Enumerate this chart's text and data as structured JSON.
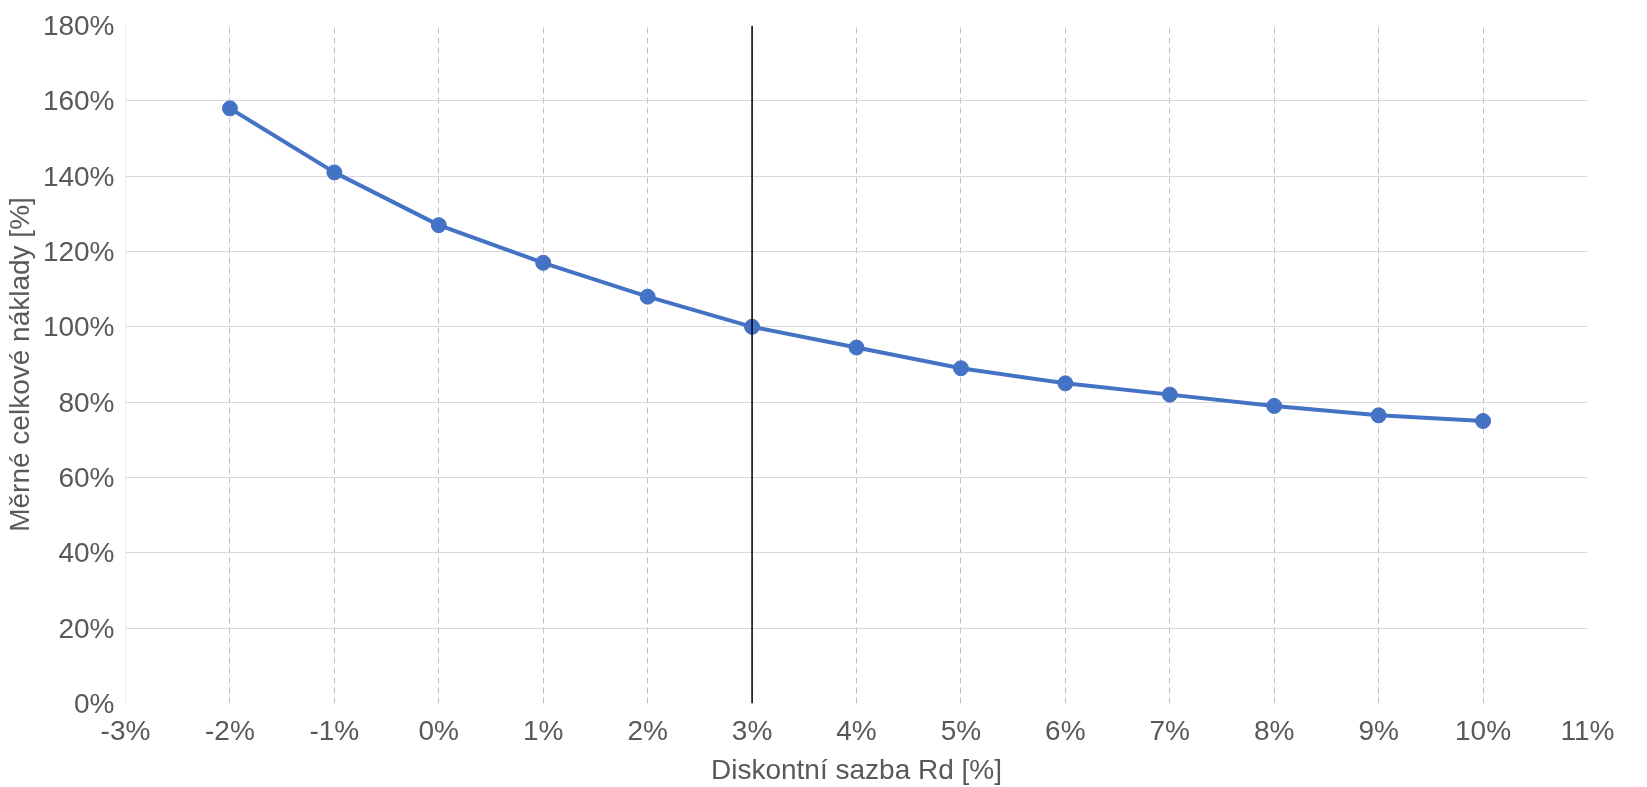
{
  "chart_data": {
    "type": "line",
    "xlabel": "Diskontní sazba Rd [%]",
    "ylabel": "Měrné celkové náklady [%]",
    "x": [
      -2,
      -1,
      0,
      1,
      2,
      3,
      4,
      5,
      6,
      7,
      8,
      9,
      10
    ],
    "series": [
      {
        "color": "#4472c4",
        "values": [
          158,
          141,
          127,
          117,
          108,
          100,
          94.5,
          89,
          85,
          82,
          79,
          76.5,
          75
        ]
      }
    ],
    "xlim": [
      -3,
      11
    ],
    "xticks": [
      {
        "value": -3,
        "label": "-3%"
      },
      {
        "value": -2,
        "label": "-2%"
      },
      {
        "value": -1,
        "label": "-1%"
      },
      {
        "value": 0,
        "label": "0%"
      },
      {
        "value": 1,
        "label": "1%"
      },
      {
        "value": 2,
        "label": "2%"
      },
      {
        "value": 3,
        "label": "3%"
      },
      {
        "value": 4,
        "label": "4%"
      },
      {
        "value": 5,
        "label": "5%"
      },
      {
        "value": 6,
        "label": "6%"
      },
      {
        "value": 7,
        "label": "7%"
      },
      {
        "value": 8,
        "label": "8%"
      },
      {
        "value": 9,
        "label": "9%"
      },
      {
        "value": 10,
        "label": "10%"
      },
      {
        "value": 11,
        "label": "11%"
      }
    ],
    "ylim": [
      0,
      180
    ],
    "yticks": [
      {
        "value": 0,
        "label": "0%"
      },
      {
        "value": 20,
        "label": "20%"
      },
      {
        "value": 40,
        "label": "40%"
      },
      {
        "value": 60,
        "label": "60%"
      },
      {
        "value": 80,
        "label": "80%"
      },
      {
        "value": 100,
        "label": "100%"
      },
      {
        "value": 120,
        "label": "120%"
      },
      {
        "value": 140,
        "label": "140%"
      },
      {
        "value": 160,
        "label": "160%"
      },
      {
        "value": 180,
        "label": "180%"
      }
    ],
    "ref_lines": [
      {
        "axis": "x",
        "value": 3,
        "color": "#000000"
      }
    ],
    "grid": true,
    "marker": "circle",
    "line_style": "solid"
  }
}
